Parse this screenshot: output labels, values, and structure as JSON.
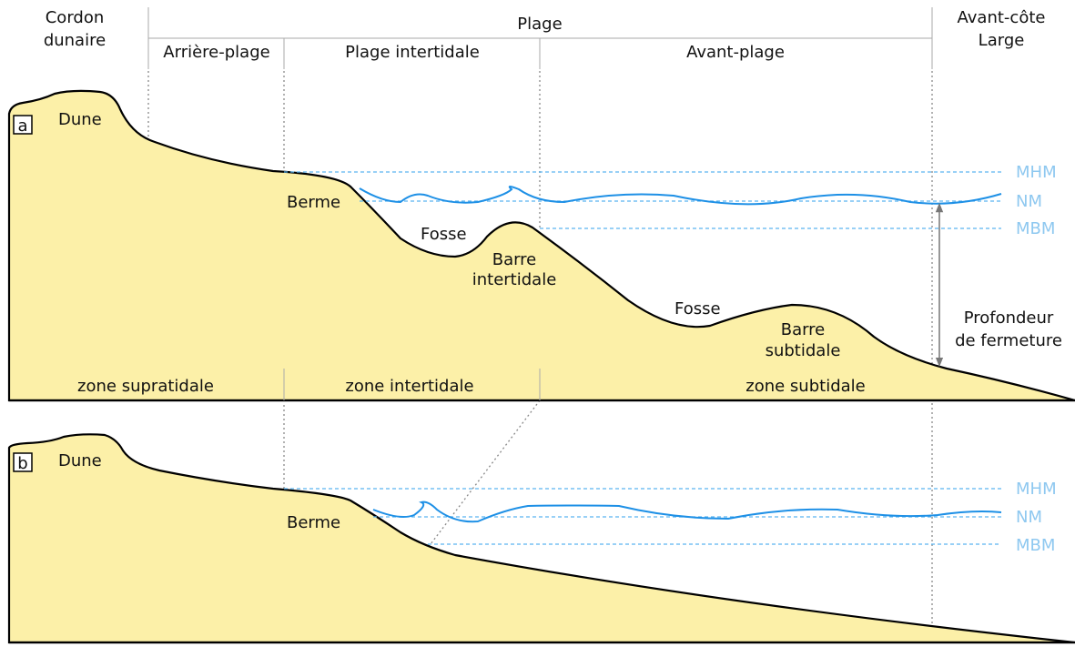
{
  "header": {
    "cordon_dunaire": [
      "Cordon",
      "dunaire"
    ],
    "plage": "Plage",
    "subzones": [
      "Arrière-plage",
      "Plage intertidale",
      "Avant-plage"
    ],
    "avant_cote": [
      "Avant-côte",
      "Large"
    ]
  },
  "panel_a": {
    "label": "a",
    "dune": "Dune",
    "berme": "Berme",
    "fosse_1": "Fosse",
    "barre_intertidale": [
      "Barre",
      "intertidale"
    ],
    "fosse_2": "Fosse",
    "barre_subtidale": [
      "Barre",
      "subtidale"
    ],
    "profondeur": [
      "Profondeur",
      "de fermeture"
    ],
    "levels": [
      "MHM",
      "NM",
      "MBM"
    ],
    "zones": [
      "zone supratidale",
      "zone intertidale",
      "zone subtidale"
    ]
  },
  "panel_b": {
    "label": "b",
    "dune": "Dune",
    "berme": "Berme",
    "levels": [
      "MHM",
      "NM",
      "MBM"
    ]
  }
}
